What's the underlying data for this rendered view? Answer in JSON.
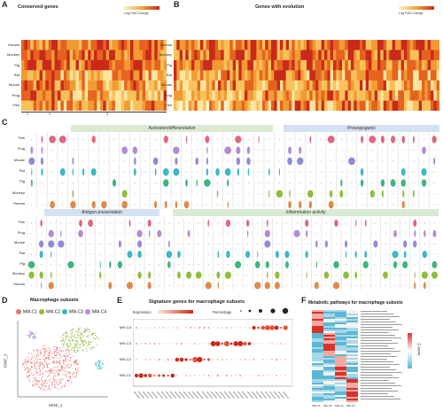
{
  "panels": {
    "A": {
      "letter": "A",
      "title": "Conserved genes",
      "scale_label": "Log Fold Change",
      "scale_ticks": [
        "-4",
        "-2",
        "0",
        "2",
        "4"
      ],
      "rows": [
        "Human",
        "Monkey",
        "Pig",
        "Rat",
        "Mouse",
        "Frog",
        "Fish"
      ],
      "clusters": [
        "1",
        "2",
        "3"
      ]
    },
    "B": {
      "letter": "B",
      "title": "Genes with evolution",
      "scale_label": "Log Fold Change",
      "scale_ticks": [
        "-4",
        "-2",
        "0",
        "2",
        "4"
      ],
      "rows": [
        "Human",
        "Monkey",
        "Pig",
        "Rat",
        "Mouse",
        "Frog",
        "Fish"
      ]
    },
    "C": {
      "letter": "C",
      "bands": [
        "Activation/differentiation",
        "Proangiogenic",
        "Antigen presentation",
        "Inflammation activity"
      ],
      "rows_top": [
        "Fish",
        "Frog",
        "Mouse",
        "Rat",
        "Pig",
        "Monkey",
        "Human"
      ],
      "rows_bottom": [
        "Fish",
        "Frog",
        "Mouse",
        "Rat",
        "Pig",
        "Monkey",
        "Human"
      ]
    },
    "D": {
      "letter": "D",
      "title": "Macrophage subsets",
      "xlabel": "tSNE_1",
      "ylabel": "tSNE_2",
      "legend": [
        "MΦ-C1",
        "MΦ-C2",
        "MΦ-C3",
        "MΦ-C4"
      ],
      "legend_colors": [
        "#e8736d",
        "#8db83a",
        "#35b6c6",
        "#b58ad6"
      ]
    },
    "E": {
      "letter": "E",
      "title": "Signature genes for macrophage subsets",
      "legend_expression": "Expression",
      "legend_percentage": "Percentage",
      "rows": [
        "MΦ-C4",
        "MΦ-C3",
        "MΦ-C2",
        "MΦ-C1"
      ]
    },
    "F": {
      "letter": "F",
      "title": "Metabolic pathways for macrophage subsets",
      "scale_label": "Z-score",
      "cols": [
        "MΦ-C1",
        "MΦ-C2",
        "MΦ-C3",
        "MΦ-C4"
      ]
    }
  },
  "colors": {
    "heat_high": "#c92a1a",
    "heat_mid": "#f2a73b",
    "heat_low": "#fff3c4",
    "band_green": "#d9ead3",
    "band_blue": "#d4e1f0",
    "z_high": "#d7332c",
    "z_low": "#5bb8d6"
  }
}
